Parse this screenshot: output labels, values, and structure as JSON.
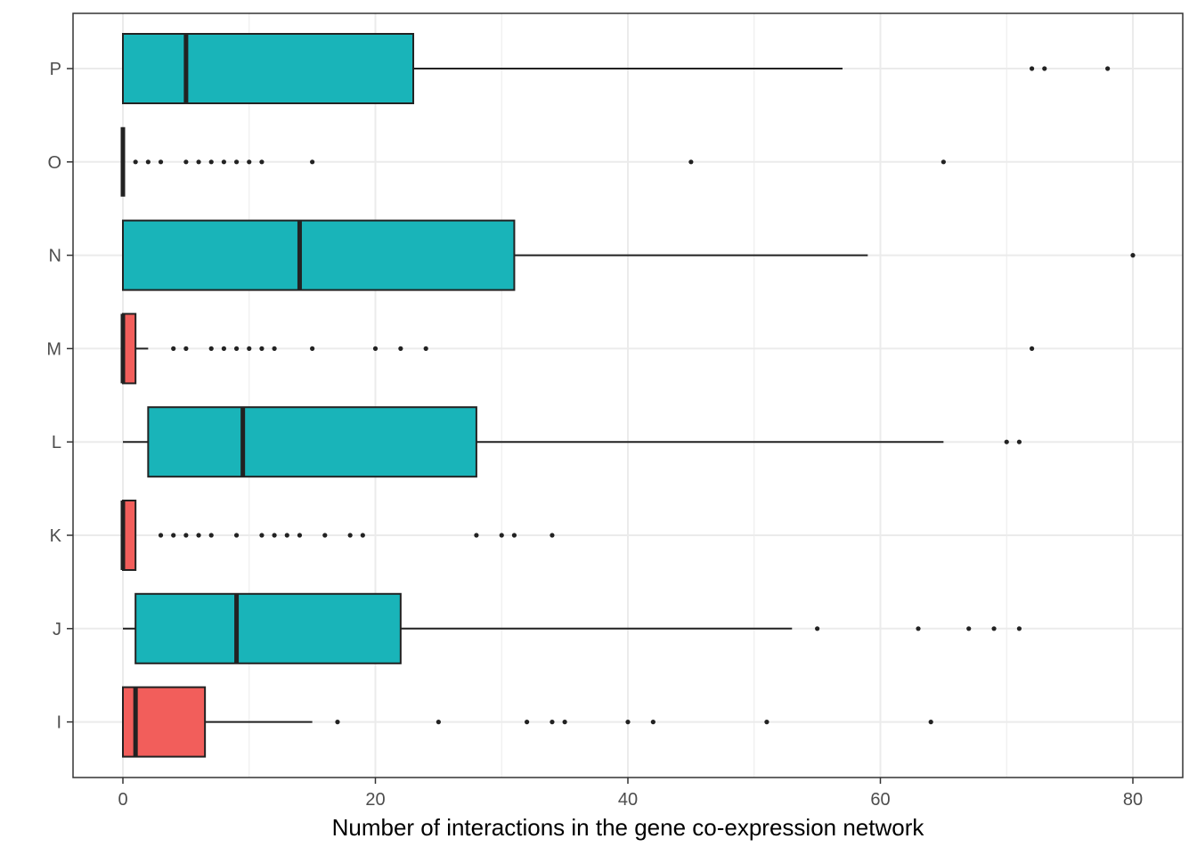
{
  "chart_data": {
    "type": "boxplot",
    "orientation": "horizontal",
    "title": "",
    "xlabel": "Number of interactions in the gene co-expression network",
    "ylabel": "",
    "xlim": [
      -4,
      82
    ],
    "x_ticks": [
      0,
      20,
      40,
      60,
      80
    ],
    "x_tick_labels": [
      "0",
      "20",
      "40",
      "60",
      "80"
    ],
    "grid": true,
    "legend": "none",
    "colors": {
      "teal": "#19b4b9",
      "red": "#f25e5b",
      "line": "#222222",
      "grid": "#ebebeb",
      "border": "#333333"
    },
    "categories": [
      "P",
      "O",
      "N",
      "M",
      "L",
      "K",
      "J",
      "I"
    ],
    "boxes": [
      {
        "category": "P",
        "fill": "teal",
        "min": 0,
        "q1": 0,
        "median": 5,
        "q3": 23,
        "max": 57,
        "outliers": [
          72,
          73,
          78
        ]
      },
      {
        "category": "O",
        "fill": "teal",
        "min": 0,
        "q1": 0,
        "median": 0,
        "q3": 0,
        "max": 0,
        "outliers": [
          1,
          2,
          3,
          5,
          6,
          7,
          8,
          9,
          10,
          11,
          15,
          45,
          65
        ]
      },
      {
        "category": "N",
        "fill": "teal",
        "min": 0,
        "q1": 0,
        "median": 14,
        "q3": 31,
        "max": 59,
        "outliers": [
          80
        ]
      },
      {
        "category": "M",
        "fill": "red",
        "min": 0,
        "q1": 0,
        "median": 0,
        "q3": 1,
        "max": 2,
        "outliers": [
          4,
          5,
          7,
          8,
          9,
          10,
          11,
          12,
          15,
          20,
          22,
          24,
          72
        ]
      },
      {
        "category": "L",
        "fill": "teal",
        "min": 0,
        "q1": 2,
        "median": 9.5,
        "q3": 28,
        "max": 65,
        "outliers": [
          70,
          71
        ]
      },
      {
        "category": "K",
        "fill": "red",
        "min": 0,
        "q1": 0,
        "median": 0,
        "q3": 1,
        "max": 1,
        "outliers": [
          3,
          4,
          5,
          6,
          7,
          9,
          11,
          12,
          13,
          14,
          16,
          18,
          19,
          28,
          30,
          31,
          34
        ]
      },
      {
        "category": "J",
        "fill": "teal",
        "min": 0,
        "q1": 1,
        "median": 9,
        "q3": 22,
        "max": 53,
        "outliers": [
          55,
          63,
          67,
          69,
          71
        ]
      },
      {
        "category": "I",
        "fill": "red",
        "min": 0,
        "q1": 0,
        "median": 1,
        "q3": 6.5,
        "max": 15,
        "outliers": [
          17,
          25,
          32,
          34,
          35,
          40,
          42,
          51,
          64
        ]
      }
    ]
  }
}
